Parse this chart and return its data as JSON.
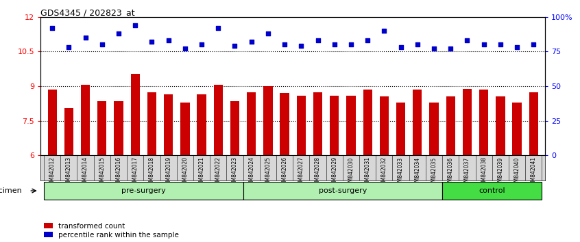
{
  "title": "GDS4345 / 202823_at",
  "samples": [
    "GSM842012",
    "GSM842013",
    "GSM842014",
    "GSM842015",
    "GSM842016",
    "GSM842017",
    "GSM842018",
    "GSM842019",
    "GSM842020",
    "GSM842021",
    "GSM842022",
    "GSM842023",
    "GSM842024",
    "GSM842025",
    "GSM842026",
    "GSM842027",
    "GSM842028",
    "GSM842029",
    "GSM842030",
    "GSM842031",
    "GSM842032",
    "GSM842033",
    "GSM842034",
    "GSM842035",
    "GSM842036",
    "GSM842037",
    "GSM842038",
    "GSM842039",
    "GSM842040",
    "GSM842041"
  ],
  "bar_values": [
    8.85,
    8.05,
    9.05,
    8.35,
    8.35,
    9.55,
    8.75,
    8.65,
    8.3,
    8.65,
    9.05,
    8.35,
    8.75,
    9.0,
    8.7,
    8.6,
    8.75,
    8.6,
    8.6,
    8.85,
    8.55,
    8.3,
    8.85,
    8.3,
    8.55,
    8.9,
    8.85,
    8.55,
    8.3,
    8.75
  ],
  "dot_values_pct": [
    92,
    78,
    85,
    80,
    88,
    94,
    82,
    83,
    77,
    80,
    92,
    79,
    82,
    88,
    80,
    79,
    83,
    80,
    80,
    83,
    90,
    78,
    80,
    77,
    77,
    83,
    80,
    80,
    78,
    80
  ],
  "bar_color": "#cc0000",
  "dot_color": "#0000cc",
  "bar_bottom": 6.0,
  "ylim_left": [
    6.0,
    12.0
  ],
  "ylim_right": [
    0,
    100
  ],
  "yticks_left": [
    6.0,
    7.5,
    9.0,
    10.5,
    12.0
  ],
  "ytick_labels_left": [
    "6",
    "7.5",
    "9",
    "10.5",
    "12"
  ],
  "yticks_right": [
    0,
    25,
    50,
    75,
    100
  ],
  "ytick_labels_right": [
    "0",
    "25",
    "50",
    "75",
    "100%"
  ],
  "hlines": [
    7.5,
    9.0,
    10.5
  ],
  "groups": [
    {
      "label": "pre-surgery",
      "start": 0,
      "end": 12,
      "color": "#b2f0b2"
    },
    {
      "label": "post-surgery",
      "start": 12,
      "end": 24,
      "color": "#b2f0b2"
    },
    {
      "label": "control",
      "start": 24,
      "end": 30,
      "color": "#44dd44"
    }
  ],
  "legend_labels": [
    "transformed count",
    "percentile rank within the sample"
  ],
  "legend_colors": [
    "#cc0000",
    "#0000cc"
  ],
  "specimen_label": "specimen",
  "figsize": [
    8.46,
    3.54
  ],
  "dpi": 100
}
